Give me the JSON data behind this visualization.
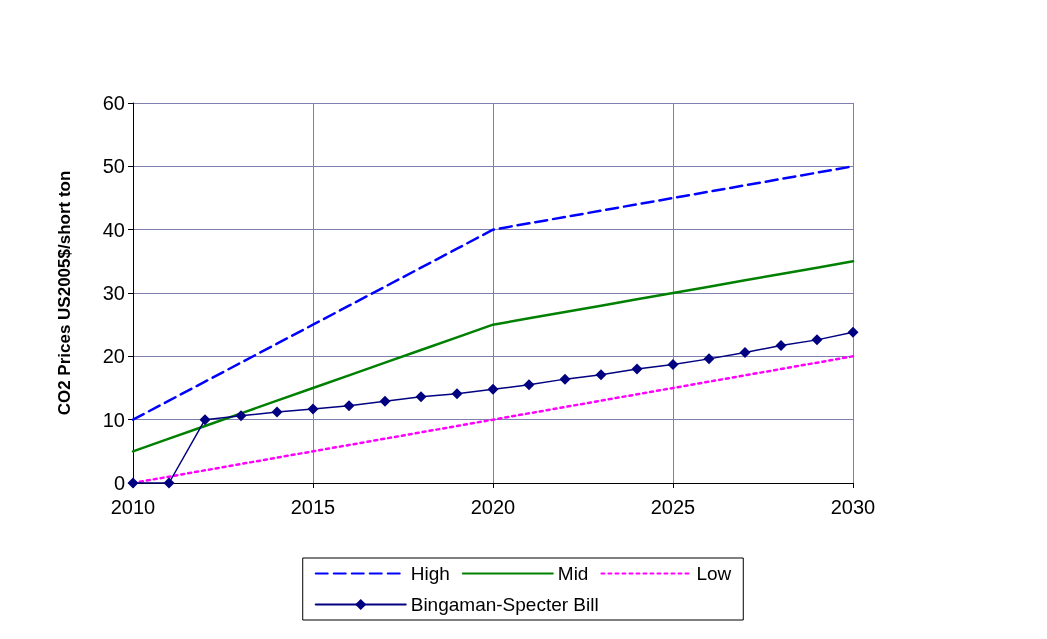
{
  "chart_data": {
    "type": "line",
    "ylabel": "CO2 Prices US2005$/short ton",
    "x": [
      2010,
      2011,
      2012,
      2013,
      2014,
      2015,
      2016,
      2017,
      2018,
      2019,
      2020,
      2021,
      2022,
      2023,
      2024,
      2025,
      2026,
      2027,
      2028,
      2029,
      2030
    ],
    "xlim": [
      2010,
      2030
    ],
    "xticks": [
      2010,
      2015,
      2020,
      2025,
      2030
    ],
    "ylim": [
      0,
      60
    ],
    "yticks": [
      0,
      10,
      20,
      30,
      40,
      50,
      60
    ],
    "grid": true,
    "legend": "bottom",
    "marker": "none",
    "series": [
      {
        "name": "High",
        "color": "#0000ff",
        "line_style": "dashed",
        "values": [
          10,
          13,
          16,
          19,
          22,
          25,
          28,
          31,
          34,
          37,
          40,
          41,
          42,
          43,
          44,
          45,
          46,
          47,
          48,
          49,
          50
        ]
      },
      {
        "name": "Mid",
        "color": "#008000",
        "line_style": "solid",
        "values": [
          5,
          7,
          9,
          11,
          13,
          15,
          17,
          19,
          21,
          23,
          25,
          26,
          27,
          28,
          29,
          30,
          31,
          32,
          33,
          34,
          35
        ]
      },
      {
        "name": "Low",
        "color": "#ff00ff",
        "line_style": "dotted",
        "values": [
          0,
          1,
          2,
          3,
          4,
          5,
          6,
          7,
          8,
          9,
          10,
          11,
          12,
          13,
          14,
          15,
          16,
          17,
          18,
          19,
          20
        ]
      },
      {
        "name": "Bingaman-Specter Bill",
        "color": "#000080",
        "line_style": "solid",
        "marker": "diamond",
        "values": [
          0,
          0,
          10,
          10.6,
          11.2,
          11.7,
          12.2,
          12.9,
          13.6,
          14.1,
          14.8,
          15.5,
          16.4,
          17.1,
          18,
          18.7,
          19.6,
          20.6,
          21.7,
          22.6,
          23.8
        ]
      }
    ]
  }
}
